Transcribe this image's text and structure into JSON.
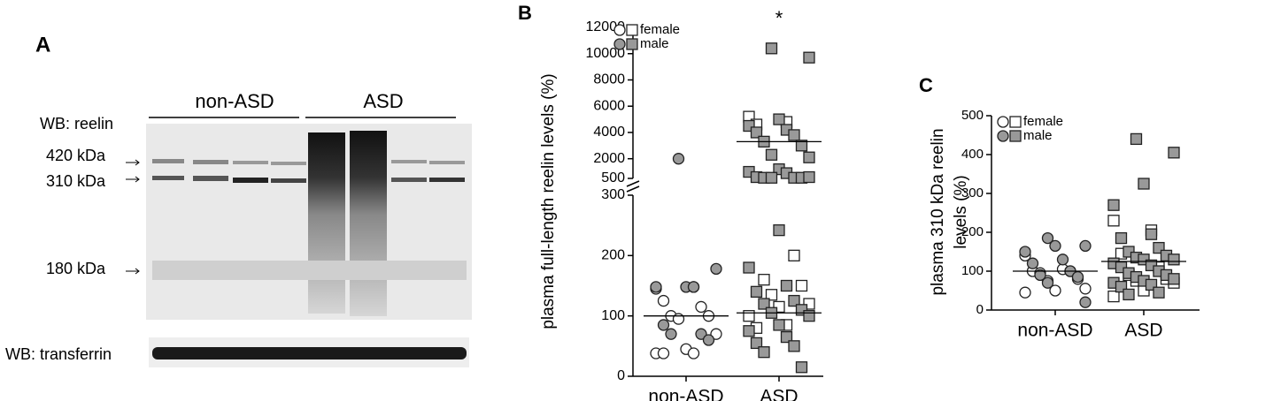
{
  "panels": {
    "a": "A",
    "b": "B",
    "c": "C"
  },
  "blot": {
    "probe_top": "WB: reelin",
    "group_1": "non-ASD",
    "group_2": "ASD",
    "markers": [
      "420 kDa",
      "310 kDa",
      "180 kDa"
    ],
    "probe_bottom": "WB: transferrin"
  },
  "chart_data": [
    {
      "type": "dotplot",
      "ylabel": [
        "plasma full-length reelin levels (%)"
      ],
      "categories": [
        "non-ASD",
        "ASD"
      ],
      "markers": [
        "circle",
        "square"
      ],
      "annotations": [
        "",
        "*"
      ],
      "ylim": [
        0,
        300
      ],
      "yticks": [
        0,
        100,
        200,
        300
      ],
      "ybreak_lim": [
        500,
        12000
      ],
      "ybreak_ticks": [
        500,
        2000,
        4000,
        6000,
        8000,
        10000,
        12000
      ],
      "series": [
        {
          "name": "female",
          "color": "#ffffff",
          "values": [
            [
              145,
              148,
              125,
              115,
              100,
              100,
              95,
              70,
              45,
              38,
              38,
              38
            ],
            [
              5200,
              4800,
              4600,
              200,
              160,
              150,
              135,
              120,
              115,
              100,
              85,
              80
            ]
          ]
        },
        {
          "name": "male",
          "color": "#999999",
          "values": [
            [
              2000,
              178,
              148,
              148,
              148,
              85,
              70,
              70,
              60
            ],
            [
              10400,
              9700,
              5000,
              4500,
              4200,
              4000,
              3800,
              3300,
              3000,
              2300,
              2100,
              1200,
              1000,
              900,
              600,
              550,
              550,
              550,
              550,
              600,
              242,
              180,
              150,
              140,
              125,
              120,
              110,
              105,
              100,
              85,
              75,
              65,
              55,
              50,
              40,
              15
            ]
          ]
        }
      ],
      "medians": [
        [
          100
        ],
        [
          105,
          3300
        ]
      ]
    },
    {
      "type": "dotplot",
      "ylabel": [
        "plasma 310 kDa reelin",
        "levels (%)"
      ],
      "categories": [
        "non-ASD",
        "ASD"
      ],
      "markers": [
        "circle",
        "square"
      ],
      "ylim": [
        0,
        500
      ],
      "yticks": [
        0,
        100,
        200,
        300,
        400,
        500
      ],
      "series": [
        {
          "name": "female",
          "color": "#ffffff",
          "values": [
            [
              140,
              105,
              100,
              100,
              95,
              80,
              75,
              55,
              50,
              45
            ],
            [
              230,
              205,
              145,
              110,
              90,
              80,
              75,
              70,
              50,
              35
            ]
          ]
        },
        {
          "name": "male",
          "color": "#999999",
          "values": [
            [
              185,
              165,
              165,
              150,
              130,
              120,
              100,
              90,
              85,
              70,
              20
            ],
            [
              440,
              405,
              325,
              270,
              195,
              185,
              160,
              150,
              140,
              135,
              130,
              130,
              120,
              115,
              110,
              100,
              95,
              90,
              85,
              80,
              75,
              70,
              65,
              60,
              45,
              40
            ]
          ]
        }
      ],
      "medians": [
        [
          100
        ],
        [
          125
        ]
      ]
    }
  ]
}
